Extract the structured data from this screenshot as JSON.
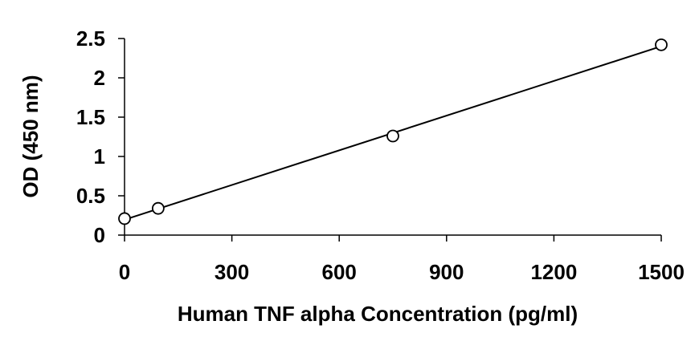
{
  "chart_data": {
    "type": "scatter",
    "x_label": "Human TNF alpha Concentration (pg/ml)",
    "y_label": "OD (450 nm)",
    "x": [
      0,
      94,
      750,
      1500
    ],
    "values": [
      0.21,
      0.34,
      1.26,
      2.42
    ],
    "color": "#000000",
    "trendline": true,
    "xlim": [
      0,
      1500
    ],
    "xticks": [
      0,
      300,
      600,
      900,
      1200,
      1500
    ],
    "ylim": [
      0,
      2.5
    ],
    "yticks": [
      0,
      0.5,
      1,
      1.5,
      2,
      2.5
    ],
    "grid": false
  }
}
